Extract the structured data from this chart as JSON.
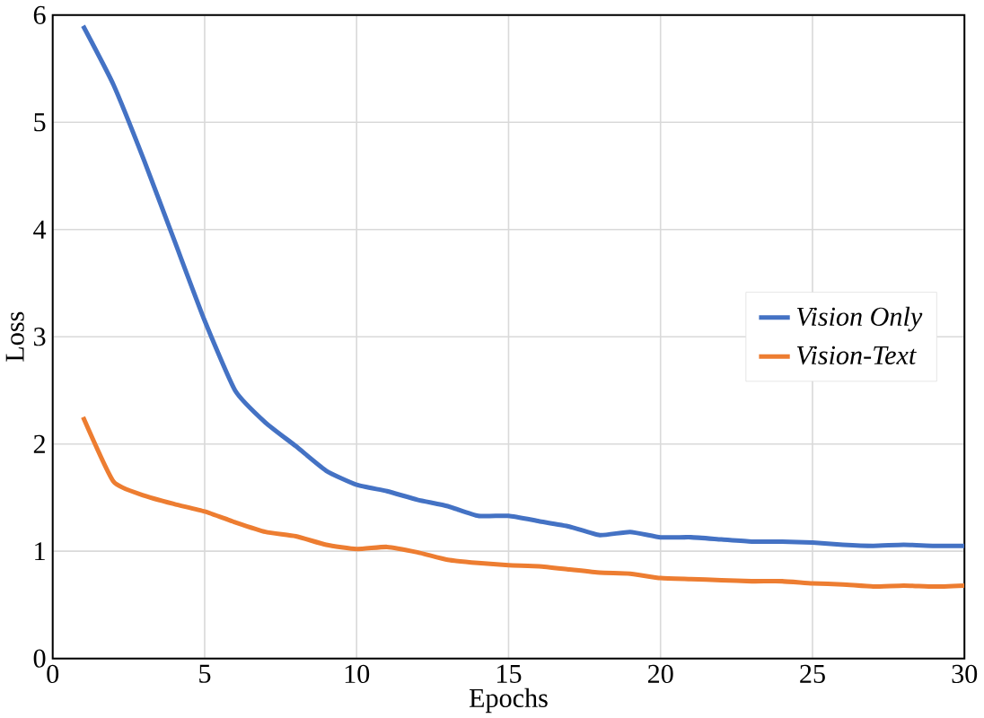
{
  "chart_data": {
    "type": "line",
    "xlabel": "Epochs",
    "ylabel": "Loss",
    "x": [
      1,
      2,
      3,
      4,
      5,
      6,
      7,
      8,
      9,
      10,
      11,
      12,
      13,
      14,
      15,
      16,
      17,
      18,
      19,
      20,
      21,
      22,
      23,
      24,
      25,
      26,
      27,
      28,
      29,
      30
    ],
    "series": [
      {
        "name": "Vision Only",
        "color": "#4472c4",
        "values": [
          5.9,
          5.35,
          4.65,
          3.9,
          3.15,
          2.5,
          2.2,
          1.98,
          1.75,
          1.62,
          1.56,
          1.48,
          1.42,
          1.33,
          1.33,
          1.28,
          1.23,
          1.15,
          1.18,
          1.13,
          1.13,
          1.11,
          1.09,
          1.09,
          1.08,
          1.06,
          1.05,
          1.06,
          1.05,
          1.05
        ]
      },
      {
        "name": "Vision-Text",
        "color": "#ed7d31",
        "values": [
          2.25,
          1.65,
          1.52,
          1.44,
          1.37,
          1.27,
          1.18,
          1.14,
          1.06,
          1.02,
          1.04,
          0.99,
          0.92,
          0.89,
          0.87,
          0.86,
          0.83,
          0.8,
          0.79,
          0.75,
          0.74,
          0.73,
          0.72,
          0.72,
          0.7,
          0.69,
          0.67,
          0.68,
          0.67,
          0.68
        ]
      }
    ],
    "xlim": [
      0,
      30
    ],
    "ylim": [
      0,
      6
    ],
    "xticks": [
      0,
      5,
      10,
      15,
      20,
      25,
      30
    ],
    "yticks": [
      0,
      1,
      2,
      3,
      4,
      5,
      6
    ],
    "grid": true,
    "legend": "right",
    "marker": "none",
    "line_style": "solid"
  }
}
